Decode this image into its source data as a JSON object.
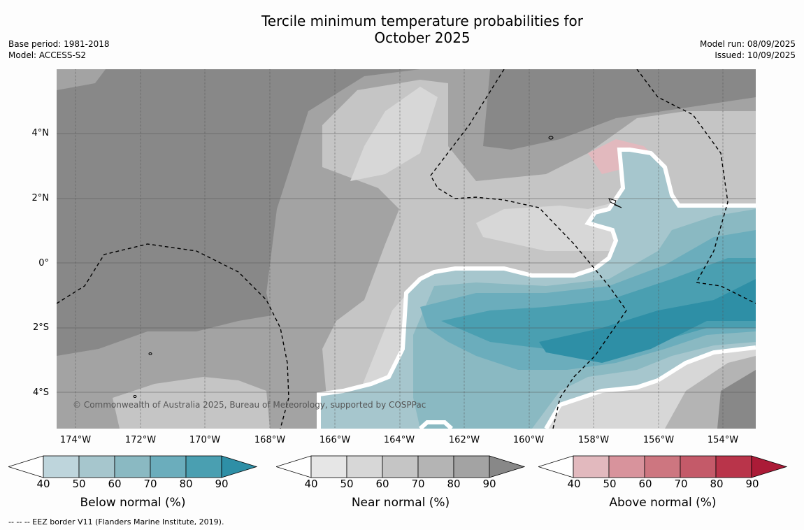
{
  "title_line1": "Tercile minimum temperature probabilities for",
  "title_line2": "October 2025",
  "base_period": "Base period: 1981-2018",
  "model": "Model: ACCESS-S2",
  "model_run": "Model run: 08/09/2025",
  "issued": "Issued: 10/09/2025",
  "copyright": "© Commonwealth of Australia 2025, Bureau of Meteorology, supported by COSPPac",
  "footer": "--  --  -- EEZ border V11 (Flanders Marine Institute, 2019).",
  "y_ticks": [
    "4°N",
    "2°N",
    "0°",
    "2°S",
    "4°S"
  ],
  "x_ticks": [
    "174°W",
    "172°W",
    "170°W",
    "168°W",
    "166°W",
    "164°W",
    "162°W",
    "160°W",
    "158°W",
    "156°W",
    "154°W"
  ],
  "colorbars": [
    {
      "label": "Below normal (%)",
      "ticks": [
        "40",
        "50",
        "60",
        "70",
        "80",
        "90"
      ],
      "colors": [
        "#ffffff",
        "#bed5dc",
        "#a6c6cd",
        "#8ab9c2",
        "#6badbc",
        "#4a9fb1",
        "#2e8fa6"
      ]
    },
    {
      "label": "Near normal (%)",
      "ticks": [
        "40",
        "50",
        "60",
        "70",
        "80",
        "90"
      ],
      "colors": [
        "#ffffff",
        "#e6e6e6",
        "#d7d7d7",
        "#c5c5c5",
        "#b4b4b4",
        "#a3a3a3",
        "#888888"
      ]
    },
    {
      "label": "Above normal (%)",
      "ticks": [
        "40",
        "50",
        "60",
        "70",
        "80",
        "90"
      ],
      "colors": [
        "#ffffff",
        "#e2b9be",
        "#d8939c",
        "#cd7680",
        "#c45a69",
        "#b9344a",
        "#ab1b37"
      ]
    }
  ]
}
